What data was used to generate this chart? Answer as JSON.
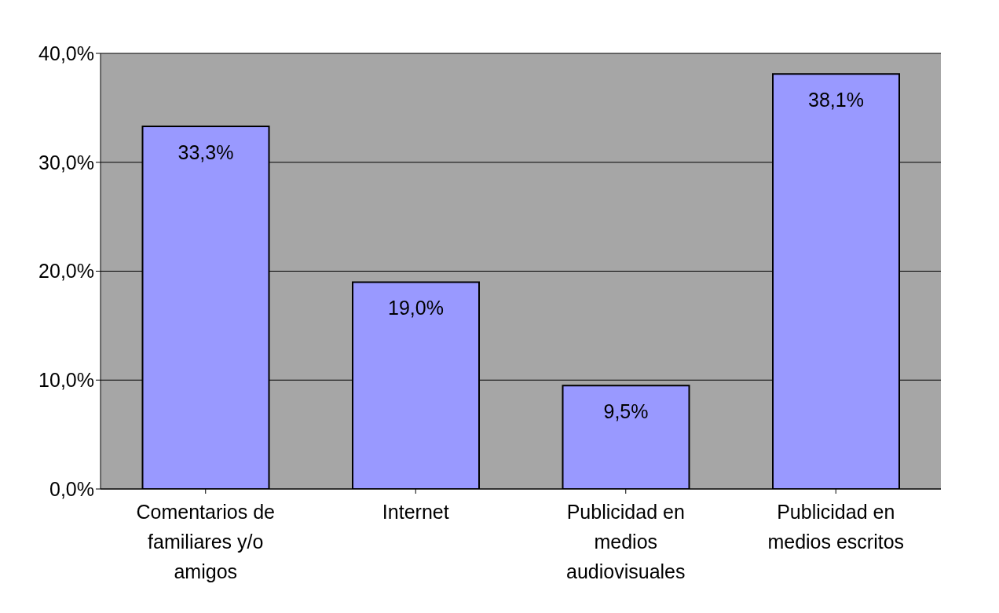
{
  "chart_data": {
    "type": "bar",
    "categories": [
      "Comentarios de familiares y/o amigos",
      "Internet",
      "Publicidad en medios audiovisuales",
      "Publicidad en medios escritos"
    ],
    "values": [
      33.3,
      19.0,
      9.5,
      38.1
    ],
    "value_labels": [
      "33,3%",
      "19,0%",
      "9,5%",
      "38,1%"
    ],
    "color": "#9999ff",
    "ylim": [
      0,
      40
    ],
    "yticks": [
      {
        "value": 0,
        "label": "0,0%"
      },
      {
        "value": 10,
        "label": "10,0%"
      },
      {
        "value": 20,
        "label": "20,0%"
      },
      {
        "value": 30,
        "label": "30,0%"
      },
      {
        "value": 40,
        "label": "40,0%"
      }
    ],
    "grid": "y"
  }
}
